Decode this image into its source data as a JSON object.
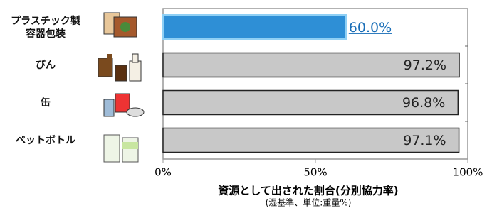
{
  "chart_data": {
    "type": "bar",
    "orientation": "horizontal",
    "categories": [
      "プラスチック製\n容器包装",
      "びん",
      "缶",
      "ペットボトル"
    ],
    "values": [
      60.0,
      97.2,
      96.8,
      97.1
    ],
    "value_labels": [
      "60.0%",
      "97.2%",
      "96.8%",
      "97.1%"
    ],
    "colors": [
      "#2e8fd6",
      "#c8c8c8",
      "#c8c8c8",
      "#c8c8c8"
    ],
    "xlim": [
      0,
      100
    ],
    "xticks": [
      {
        "value": 0,
        "label": "0%"
      },
      {
        "value": 50,
        "label": "50%"
      },
      {
        "value": 100,
        "label": "100%"
      }
    ],
    "xlabel": "資源として出された割合(分別協力率)",
    "subtitle": "(湿基準、単位:重量%)"
  }
}
